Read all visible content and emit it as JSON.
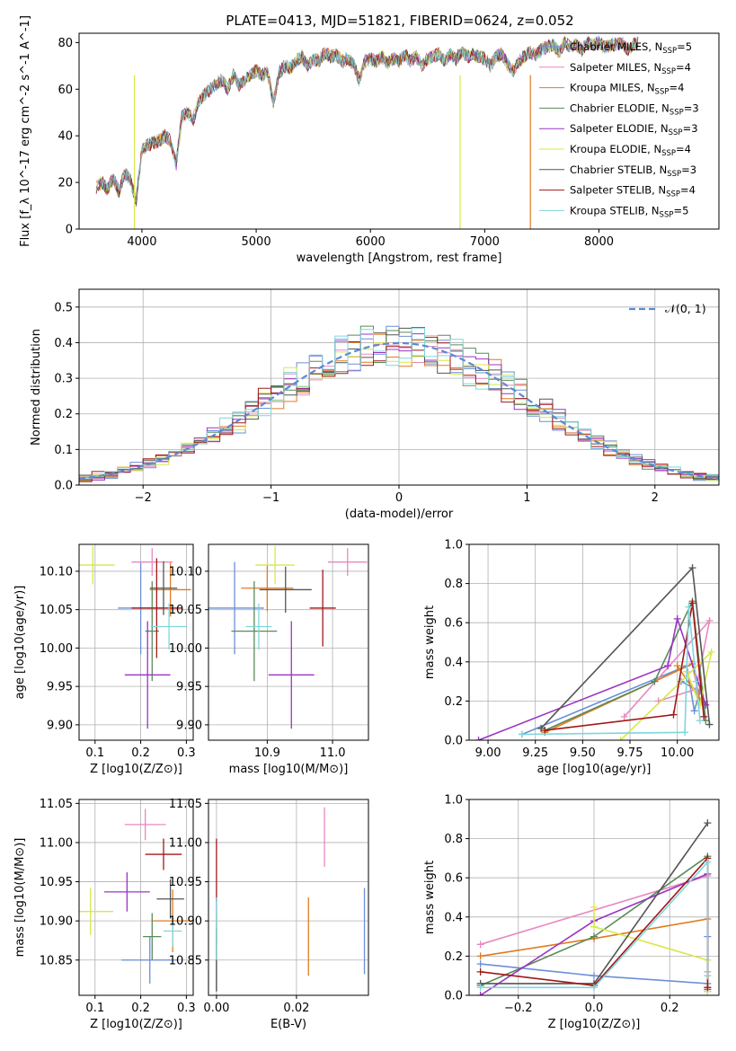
{
  "figure_title": "PLATE=0413, MJD=51821, FIBERID=0624, z=0.052",
  "model_colors": [
    "#6b8fd8",
    "#e888c0",
    "#e07b20",
    "#5a8a5a",
    "#9b34c4",
    "#d8e84a",
    "#555555",
    "#a01818",
    "#7fd6dc"
  ],
  "chart_data": [
    {
      "id": "spectrum",
      "type": "line",
      "title": "PLATE=0413, MJD=51821, FIBERID=0624, z=0.052",
      "xlabel": "wavelength [Angstrom, rest frame]",
      "ylabel": "Flux [f_λ 10^-17 erg cm^-2 s^-1 A^-1]",
      "xlim": [
        3450,
        9050
      ],
      "ylim": [
        0,
        84
      ],
      "xticks": [
        4000,
        5000,
        6000,
        7000,
        8000
      ],
      "yticks": [
        0,
        20,
        40,
        60,
        80
      ],
      "grid": false,
      "legend_position": "upper-right",
      "legend": [
        "Chabrier MILES, N_SSP=5",
        "Salpeter MILES, N_SSP=4",
        "Kroupa MILES, N_SSP=4",
        "Chabrier ELODIE, N_SSP=3",
        "Salpeter ELODIE, N_SSP=3",
        "Kroupa ELODIE, N_SSP=4",
        "Chabrier STELIB, N_SSP=3",
        "Salpeter STELIB, N_SSP=4",
        "Kroupa STELIB, N_SSP=5"
      ],
      "data_x": [
        3600,
        3650,
        3700,
        3750,
        3800,
        3850,
        3900,
        3950,
        4000,
        4050,
        4100,
        4150,
        4200,
        4250,
        4300,
        4350,
        4400,
        4450,
        4500,
        4550,
        4600,
        4650,
        4700,
        4750,
        4800,
        4850,
        4900,
        4950,
        5000,
        5050,
        5100,
        5150,
        5200,
        5250,
        5300,
        5350,
        5400,
        5450,
        5500,
        5550,
        5600,
        5650,
        5700,
        5750,
        5800,
        5850,
        5900,
        5950,
        6000,
        6050,
        6100,
        6150,
        6200,
        6250,
        6300,
        6350,
        6400,
        6450,
        6500,
        6550,
        6600,
        6650,
        6700,
        6750,
        6800,
        6850,
        6900,
        6950,
        7000,
        7050,
        7100,
        7150,
        7200,
        7250,
        7300,
        7350,
        7400,
        7450,
        7500,
        7550,
        7600,
        7650,
        7700,
        7750,
        7800,
        7850,
        7900,
        7950,
        8000,
        8050,
        8100,
        8150,
        8200,
        8250,
        8300,
        8350
      ],
      "data_y": [
        18,
        20,
        17,
        22,
        16,
        24,
        21,
        12,
        34,
        36,
        37,
        38,
        40,
        38,
        28,
        48,
        50,
        47,
        55,
        58,
        60,
        62,
        64,
        60,
        66,
        62,
        64,
        66,
        68,
        66,
        67,
        54,
        67,
        70,
        69,
        72,
        74,
        70,
        73,
        72,
        76,
        74,
        75,
        72,
        73,
        71,
        64,
        72,
        73,
        72,
        74,
        71,
        73,
        72,
        75,
        72,
        74,
        70,
        73,
        74,
        75,
        72,
        75,
        73,
        76,
        74,
        75,
        74,
        73,
        70,
        74,
        75,
        71,
        68,
        72,
        74,
        76,
        75,
        77,
        78,
        79,
        76,
        80,
        78,
        79,
        77,
        80,
        79,
        80,
        78,
        79,
        79,
        80,
        77,
        79,
        80
      ],
      "dips": [
        {
          "x": 3934,
          "y": 0
        },
        {
          "x": 6785,
          "y": 0
        },
        {
          "x": 7400,
          "y": 0
        }
      ]
    },
    {
      "id": "residual-hist",
      "type": "line",
      "xlabel": "(data-model)/error",
      "ylabel": "Normed distribution",
      "xlim": [
        -2.5,
        2.5
      ],
      "ylim": [
        0,
        0.55
      ],
      "xticks": [
        -2,
        -1,
        0,
        1,
        2
      ],
      "yticks": [
        0.0,
        0.1,
        0.2,
        0.3,
        0.4,
        0.5
      ],
      "grid": true,
      "legend_position": "upper-right",
      "reference_curve": "𝒩(0, 1)",
      "bin_width": 0.1
    },
    {
      "id": "age-vs-Z",
      "type": "scatter",
      "xlabel": "Z [log10(Z/Z⊙)]",
      "ylabel": "age  [log10(age/yr)]",
      "xlim": [
        0.065,
        0.315
      ],
      "ylim": [
        9.88,
        10.135
      ],
      "xticks": [
        0.1,
        0.2,
        0.3
      ],
      "yticks": [
        9.9,
        9.95,
        10.0,
        10.05,
        10.1
      ],
      "grid": true,
      "points": [
        {
          "x": 0.2,
          "y": 10.052,
          "xerr": 0.05,
          "yerr": 0.06
        },
        {
          "x": 0.225,
          "y": 10.112,
          "xerr": 0.045,
          "yerr": 0.018
        },
        {
          "x": 0.265,
          "y": 10.076,
          "xerr": 0.045,
          "yerr": 0.035
        },
        {
          "x": 0.225,
          "y": 10.022,
          "xerr": 0.015,
          "yerr": 0.065
        },
        {
          "x": 0.215,
          "y": 9.965,
          "xerr": 0.05,
          "yerr": 0.07
        },
        {
          "x": 0.095,
          "y": 10.108,
          "xerr": 0.048,
          "yerr": 0.025
        },
        {
          "x": 0.25,
          "y": 10.078,
          "xerr": 0.03,
          "yerr": 0.035
        },
        {
          "x": 0.235,
          "y": 10.052,
          "xerr": 0.055,
          "yerr": 0.065
        },
        {
          "x": 0.262,
          "y": 10.028,
          "xerr": 0.04,
          "yerr": 0.03
        }
      ]
    },
    {
      "id": "age-vs-mass",
      "type": "scatter",
      "xlabel": "mass [log10(M/M⊙)]",
      "ylabel": "",
      "xlim": [
        10.81,
        11.055
      ],
      "ylim": [
        9.88,
        10.135
      ],
      "xticks": [
        10.9,
        11.0
      ],
      "yticks": [
        9.9,
        9.95,
        10.0,
        10.05,
        10.1
      ],
      "grid": true,
      "points": [
        {
          "x": 10.85,
          "y": 10.052,
          "xerr": 0.045,
          "yerr": 0.06
        },
        {
          "x": 11.023,
          "y": 10.112,
          "xerr": 0.03,
          "yerr": 0.018
        },
        {
          "x": 10.9,
          "y": 10.078,
          "xerr": 0.04,
          "yerr": 0.03
        },
        {
          "x": 10.88,
          "y": 10.022,
          "xerr": 0.035,
          "yerr": 0.065
        },
        {
          "x": 10.937,
          "y": 9.965,
          "xerr": 0.035,
          "yerr": 0.07
        },
        {
          "x": 10.912,
          "y": 10.108,
          "xerr": 0.03,
          "yerr": 0.025
        },
        {
          "x": 10.928,
          "y": 10.076,
          "xerr": 0.04,
          "yerr": 0.03
        },
        {
          "x": 10.985,
          "y": 10.052,
          "xerr": 0.02,
          "yerr": 0.05
        },
        {
          "x": 10.887,
          "y": 10.028,
          "xerr": 0.02,
          "yerr": 0.03
        }
      ]
    },
    {
      "id": "weight-vs-age",
      "type": "line",
      "xlabel": "age  [log10(age/yr)]",
      "ylabel": "mass weight",
      "xlim": [
        8.9,
        10.22
      ],
      "ylim": [
        0,
        1.0
      ],
      "xticks": [
        9.0,
        9.25,
        9.5,
        9.75,
        10.0
      ],
      "yticks": [
        0.0,
        0.2,
        0.4,
        0.6,
        0.8,
        1.0
      ],
      "grid": true,
      "series": [
        {
          "x": [
            9.18,
            10.05,
            10.09,
            10.12,
            10.02
          ],
          "y": [
            0.03,
            0.38,
            0.15,
            0.25,
            0.3
          ]
        },
        {
          "x": [
            9.72,
            10.17,
            10.1,
            9.9
          ],
          "y": [
            0.12,
            0.61,
            0.26,
            0.2
          ]
        },
        {
          "x": [
            9.3,
            10.08,
            10.12,
            10.14,
            10.0
          ],
          "y": [
            0.04,
            0.39,
            0.2,
            0.18,
            0.38
          ]
        },
        {
          "x": [
            9.3,
            9.88,
            10.08,
            10.15
          ],
          "y": [
            0.05,
            0.3,
            0.71,
            0.1
          ]
        },
        {
          "x": [
            8.95,
            9.95,
            10.0,
            10.15
          ],
          "y": [
            0.0,
            0.38,
            0.62,
            0.18
          ]
        },
        {
          "x": [
            9.7,
            10.18,
            10.12,
            10.05
          ],
          "y": [
            0.0,
            0.45,
            0.18,
            0.35
          ]
        },
        {
          "x": [
            9.28,
            10.08,
            10.17
          ],
          "y": [
            0.06,
            0.88,
            0.08
          ]
        },
        {
          "x": [
            9.3,
            9.98,
            10.08,
            10.14
          ],
          "y": [
            0.05,
            0.13,
            0.7,
            0.12
          ]
        },
        {
          "x": [
            9.18,
            10.04,
            10.06,
            10.1,
            10.12
          ],
          "y": [
            0.03,
            0.04,
            0.68,
            0.3,
            0.1
          ]
        }
      ]
    },
    {
      "id": "mass-vs-Z",
      "type": "scatter",
      "xlabel": "Z [log10(Z/Z⊙)]",
      "ylabel": "mass [log10(M/M⊙)]",
      "xlim": [
        0.065,
        0.315
      ],
      "ylim": [
        10.805,
        11.055
      ],
      "xticks": [
        0.1,
        0.2,
        0.3
      ],
      "yticks": [
        10.85,
        10.9,
        10.95,
        11.0,
        11.05
      ],
      "grid": true,
      "points": [
        {
          "x": 0.22,
          "y": 10.85,
          "xerr": 0.062,
          "yerr": 0.03
        },
        {
          "x": 0.21,
          "y": 11.023,
          "xerr": 0.045,
          "yerr": 0.02
        },
        {
          "x": 0.27,
          "y": 10.9,
          "xerr": 0.045,
          "yerr": 0.04
        },
        {
          "x": 0.225,
          "y": 10.88,
          "xerr": 0.02,
          "yerr": 0.03
        },
        {
          "x": 0.17,
          "y": 10.937,
          "xerr": 0.05,
          "yerr": 0.025
        },
        {
          "x": 0.09,
          "y": 10.912,
          "xerr": 0.05,
          "yerr": 0.03
        },
        {
          "x": 0.265,
          "y": 10.928,
          "xerr": 0.03,
          "yerr": 0.025
        },
        {
          "x": 0.25,
          "y": 10.985,
          "xerr": 0.04,
          "yerr": 0.02
        },
        {
          "x": 0.27,
          "y": 10.887,
          "xerr": 0.02,
          "yerr": 0.02
        }
      ]
    },
    {
      "id": "mass-vs-EBV",
      "type": "scatter",
      "xlabel": "E(B-V)",
      "ylabel": "",
      "xlim": [
        -0.002,
        0.038
      ],
      "ylim": [
        10.805,
        11.055
      ],
      "xticks": [
        0.0,
        0.02
      ],
      "yticks": [
        10.85,
        10.9,
        10.95,
        11.0,
        11.05
      ],
      "grid": true,
      "points": [
        {
          "x": 0.037,
          "y": 10.887,
          "yerr": 0.055
        },
        {
          "x": 0.027,
          "y": 11.007,
          "yerr": 0.038
        },
        {
          "x": 0.023,
          "y": 10.88,
          "yerr": 0.05
        },
        {
          "x": 0.0,
          "y": 10.86,
          "yerr": 0.05
        },
        {
          "x": 0.0,
          "y": 10.9,
          "yerr": 0.03
        },
        {
          "x": 0.0,
          "y": 10.88,
          "yerr": 0.03
        },
        {
          "x": 0.0,
          "y": 10.85,
          "yerr": 0.04
        },
        {
          "x": 0.0,
          "y": 10.965,
          "yerr": 0.04
        },
        {
          "x": 0.0,
          "y": 10.89,
          "yerr": 0.04
        }
      ]
    },
    {
      "id": "weight-vs-Z",
      "type": "line",
      "xlabel": "Z [log10(Z/Z⊙)]",
      "ylabel": "mass weight",
      "xlim": [
        -0.33,
        0.33
      ],
      "ylim": [
        0,
        1.0
      ],
      "xticks": [
        -0.2,
        0.0,
        0.2
      ],
      "yticks": [
        0.0,
        0.2,
        0.4,
        0.6,
        0.8,
        1.0
      ],
      "grid": true,
      "series": [
        {
          "x": [
            -0.3,
            0.0,
            0.3,
            0.3
          ],
          "y": [
            0.16,
            0.1,
            0.06,
            0.3
          ]
        },
        {
          "x": [
            -0.3,
            0.3,
            0.3
          ],
          "y": [
            0.26,
            0.61,
            0.12
          ]
        },
        {
          "x": [
            -0.3,
            0.0,
            0.3,
            0.3
          ],
          "y": [
            0.2,
            0.29,
            0.39,
            0.04
          ]
        },
        {
          "x": [
            -0.3,
            0.0,
            0.3,
            0.3
          ],
          "y": [
            0.05,
            0.3,
            0.71,
            0.02
          ]
        },
        {
          "x": [
            -0.3,
            0.0,
            0.3,
            0.3
          ],
          "y": [
            0.0,
            0.38,
            0.62,
            0.03
          ]
        },
        {
          "x": [
            0.0,
            0.0,
            0.3,
            0.3
          ],
          "y": [
            0.45,
            0.35,
            0.18,
            0.02
          ]
        },
        {
          "x": [
            -0.3,
            0.0,
            0.3
          ],
          "y": [
            0.06,
            0.06,
            0.88
          ]
        },
        {
          "x": [
            -0.3,
            0.0,
            0.3,
            0.3
          ],
          "y": [
            0.12,
            0.05,
            0.7,
            0.04
          ]
        },
        {
          "x": [
            -0.3,
            0.0,
            0.3,
            0.3
          ],
          "y": [
            0.04,
            0.04,
            0.68,
            0.1
          ]
        }
      ]
    }
  ]
}
